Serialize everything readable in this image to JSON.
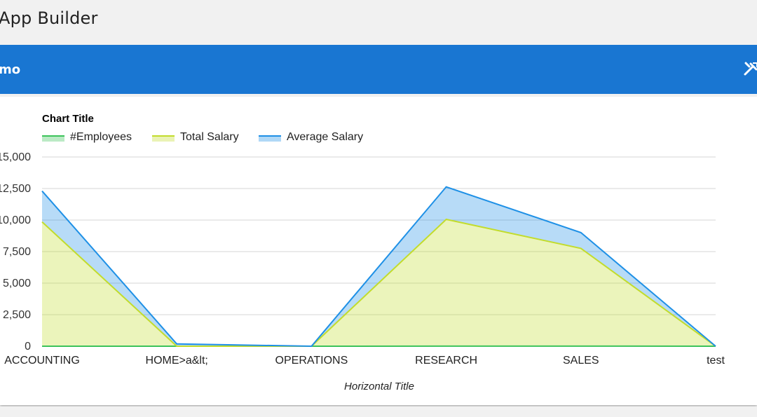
{
  "app": {
    "title": "App Builder"
  },
  "region": {
    "title": "mo",
    "tools_icon": "tools-icon"
  },
  "chart_data": {
    "type": "area",
    "title": "Chart Title",
    "xlabel": "Horizontal Title",
    "ylabel": "",
    "categories": [
      "ACCOUNTING",
      "HOME>a&lt;",
      "OPERATIONS",
      "RESEARCH",
      "SALES",
      "test"
    ],
    "ylim": [
      0,
      25000
    ],
    "yticks": [
      0,
      2500,
      5000,
      7500,
      10000,
      12500,
      15000
    ],
    "ytick_labels": [
      "0",
      "2,500",
      "5,000",
      "7,500",
      "10,000",
      "12,500",
      "15,000"
    ],
    "stacked": true,
    "legend_position": "top-left",
    "series": [
      {
        "name": "#Employees",
        "color": "#3cc35a",
        "values": [
          3,
          0,
          0,
          5,
          6,
          0
        ]
      },
      {
        "name": "Total Salary",
        "color": "#c2dc2c",
        "values": [
          9850,
          0,
          0,
          10050,
          7750,
          0
        ]
      },
      {
        "name": "Average Salary",
        "color": "#1e90e6",
        "values": [
          2450,
          180,
          0,
          2575,
          1250,
          0
        ]
      }
    ]
  }
}
